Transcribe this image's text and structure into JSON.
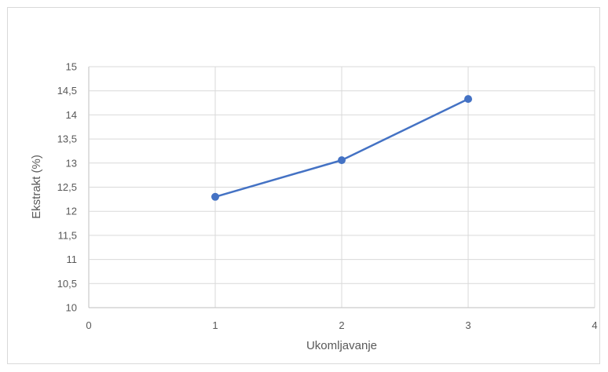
{
  "chart_data": {
    "type": "scatter",
    "title": "",
    "xlabel": "Ukomljavanje",
    "ylabel": "Ekstrakt (%)",
    "xlim": [
      0,
      4
    ],
    "ylim": [
      10,
      15
    ],
    "x_ticks": [
      "0",
      "1",
      "2",
      "3",
      "4"
    ],
    "y_ticks": [
      "10",
      "10,5",
      "11",
      "11,5",
      "12",
      "12,5",
      "13",
      "13,5",
      "14",
      "14,5",
      "15"
    ],
    "grid": true,
    "legend": "none",
    "series": [
      {
        "x": [
          1,
          2,
          3
        ],
        "y": [
          12.3,
          13.06,
          14.33
        ],
        "color": "#4472c4",
        "markers": true,
        "lines": true
      }
    ]
  }
}
